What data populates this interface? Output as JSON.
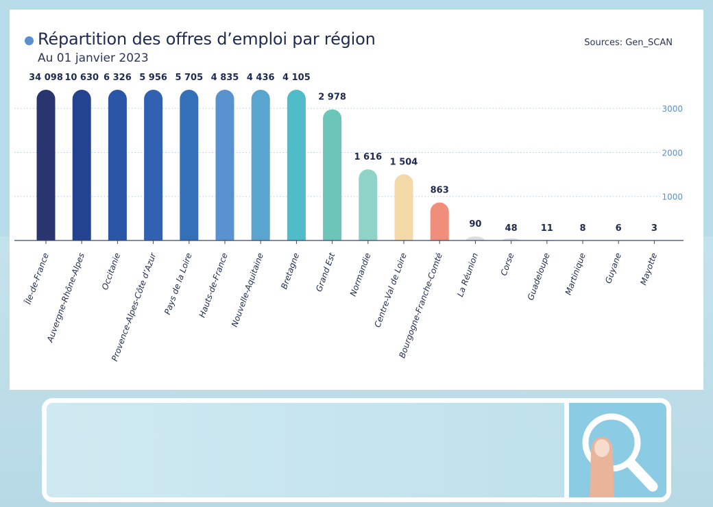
{
  "header": {
    "title": "Répartition des offres d’emploi par région",
    "subtitle": "Au 01 janvier 2023",
    "source": "Sources: Gen_SCAN"
  },
  "colors": {
    "accent_dot": "#5b8fd0",
    "axis_text": "#5a8fc8",
    "search_button": "#8ccbe4",
    "bars": [
      "#28356f",
      "#23428f",
      "#2a56a8",
      "#3162b2",
      "#3470b8",
      "#5a92cf",
      "#5aa5d0",
      "#4ebcc9",
      "#6bc5b8",
      "#8fd3c8",
      "#f3d9a8",
      "#ef8f7b",
      "#dddddd",
      "#dddddd",
      "#dddddd",
      "#dddddd",
      "#dddddd",
      "#dddddd"
    ]
  },
  "chart_data": {
    "type": "bar",
    "title": "Répartition des offres d’emploi par région",
    "subtitle": "Au 01 janvier 2023",
    "categories": [
      "Île-de-France",
      "Auvergne-Rhône-Alpes",
      "Occitanie",
      "Provence-Alpes-Côte d’Azur",
      "Pays de la Loire",
      "Hauts-de-France",
      "Nouvelle-Aquitaine",
      "Bretagne",
      "Grand Est",
      "Normandie",
      "Centre-Val de Loire",
      "Bourgogne-Franche-Comté",
      "La Réunion",
      "Corse",
      "Guadeloupe",
      "Martinique",
      "Guyane",
      "Mayotte"
    ],
    "values": [
      34098,
      10630,
      6326,
      5956,
      5705,
      4835,
      4436,
      4105,
      2978,
      1616,
      1504,
      863,
      90,
      48,
      11,
      8,
      6,
      3
    ],
    "value_labels": [
      "34 098",
      "10 630",
      "6 326",
      "5 956",
      "5 705",
      "4 835",
      "4 436",
      "4 105",
      "2 978",
      "1 616",
      "1 504",
      "863",
      "90",
      "48",
      "11",
      "8",
      "6",
      "3"
    ],
    "y_ticks": [
      1000,
      2000,
      3000
    ],
    "y_tick_labels": [
      "1000",
      "2000",
      "3000"
    ],
    "grid": true,
    "y_axis_position": "right"
  },
  "search": {
    "icon": "magnifier-icon"
  }
}
